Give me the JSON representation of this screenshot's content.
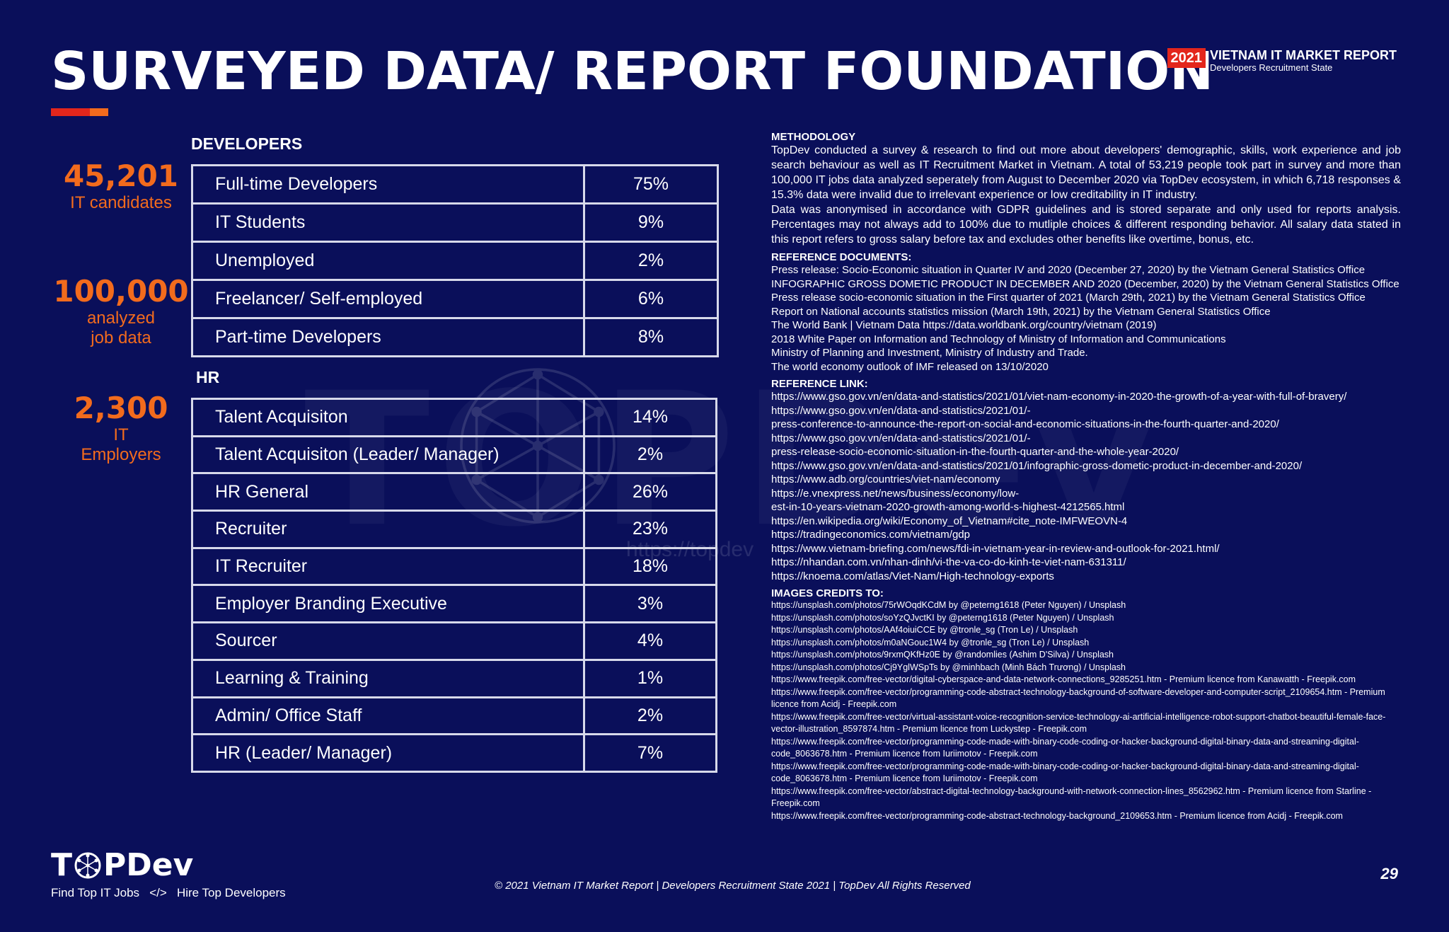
{
  "title": "SURVEYED DATA/ REPORT FOUNDATION",
  "brand": {
    "year": "2021",
    "title": "VIETNAM IT MARKET REPORT",
    "subtitle": "Developers Recruitment State"
  },
  "colors": {
    "background": "#0a0f5a",
    "accent_orange": "#f26b1d",
    "accent_red": "#e3261c",
    "table_border": "#d7d9ea"
  },
  "stats": [
    {
      "number": "45,201",
      "label1": "IT candidates",
      "label2": ""
    },
    {
      "number": "100,000",
      "label1": "analyzed",
      "label2": "job data"
    },
    {
      "number": "2,300",
      "label1": "IT",
      "label2": "Employers"
    }
  ],
  "developers": {
    "heading": "DEVELOPERS",
    "rows": [
      {
        "label": "Full-time Developers",
        "value": "75%"
      },
      {
        "label": "IT Students",
        "value": "9%"
      },
      {
        "label": "Unemployed",
        "value": "2%"
      },
      {
        "label": "Freelancer/ Self-employed",
        "value": "6%"
      },
      {
        "label": "Part-time Developers",
        "value": "8%"
      }
    ]
  },
  "hr": {
    "heading": "HR",
    "rows": [
      {
        "label": "Talent Acquisiton",
        "value": "14%"
      },
      {
        "label": "Talent Acquisiton (Leader/ Manager)",
        "value": "2%"
      },
      {
        "label": "HR General",
        "value": "26%"
      },
      {
        "label": "Recruiter",
        "value": "23%"
      },
      {
        "label": "IT Recruiter",
        "value": "18%"
      },
      {
        "label": "Employer Branding Executive",
        "value": "3%"
      },
      {
        "label": "Sourcer",
        "value": "4%"
      },
      {
        "label": "Learning & Training",
        "value": "1%"
      },
      {
        "label": "Admin/ Office Staff",
        "value": "2%"
      },
      {
        "label": "HR (Leader/ Manager)",
        "value": "7%"
      }
    ]
  },
  "methodology": {
    "heading": "METHODOLOGY",
    "p1": "TopDev conducted a survey & research to find out more about developers' demographic, skills, work experience and job search behaviour as well as IT Recruitment Market in Vietnam. A total of 53,219 people took part in survey and more than 100,000 IT jobs data analyzed seperately from August to December 2020 via TopDev ecosystem, in which 6,718 responses & 15.3% data were invalid due to irrelevant experience or low creditability in IT industry.",
    "p2": "Data was anonymised in accordance with GDPR guidelines and is stored separate and only used for reports analysis. Percentages may not always add to 100% due to mutliple choices & different responding behavior. All salary data stated in this report refers to gross salary before tax and excludes other benefits like overtime, bonus, etc."
  },
  "reference_documents": {
    "heading": "REFERENCE DOCUMENTS:",
    "items": [
      "Press release: Socio-Economic situation in Quarter IV and 2020 (December 27, 2020) by the Vietnam General Statistics Office",
      "INFOGRAPHIC GROSS DOMETIC PRODUCT IN DECEMBER AND 2020 (December, 2020) by the Vietnam General Statistics Office",
      "Press release socio-economic situation in the First quarter of 2021 (March 29th, 2021) by the Vietnam General Statistics Office",
      "Report on National accounts statistics mission  (March 19th, 2021) by the Vietnam General Statistics Office",
      "The World Bank | Vietnam Data https://data.worldbank.org/country/vietnam (2019)",
      "2018 White Paper on Information and Technology of Ministry of Information and Communications",
      "Ministry of Planning and Investment, Ministry of Industry and Trade.",
      "The world economy outlook of IMF released on 13/10/2020"
    ]
  },
  "reference_link": {
    "heading": "REFERENCE LINK:",
    "items": [
      "https://www.gso.gov.vn/en/data-and-statistics/2021/01/viet-nam-economy-in-2020-the-growth-of-a-year-with-full-of-bravery/",
      "https://www.gso.gov.vn/en/data-and-statistics/2021/01/-",
      "press-conference-to-announce-the-report-on-social-and-economic-situations-in-the-fourth-quarter-and-2020/",
      "https://www.gso.gov.vn/en/data-and-statistics/2021/01/-",
      "press-release-socio-economic-situation-in-the-fourth-quarter-and-the-whole-year-2020/",
      "https://www.gso.gov.vn/en/data-and-statistics/2021/01/infographic-gross-dometic-product-in-december-and-2020/",
      "https://www.adb.org/countries/viet-nam/economy",
      "https://e.vnexpress.net/news/business/economy/low-",
      "est-in-10-years-vietnam-2020-growth-among-world-s-highest-4212565.html",
      "https://en.wikipedia.org/wiki/Economy_of_Vietnam#cite_note-IMFWEOVN-4",
      "https://tradingeconomics.com/vietnam/gdp",
      "https://www.vietnam-briefing.com/news/fdi-in-vietnam-year-in-review-and-outlook-for-2021.html/",
      "https://nhandan.com.vn/nhan-dinh/vi-the-va-co-do-kinh-te-viet-nam-631311/",
      "https://knoema.com/atlas/Viet-Nam/High-technology-exports"
    ]
  },
  "images_credits": {
    "heading": "IMAGES CREDITS TO:",
    "items": [
      "https://unsplash.com/photos/75rWOqdKCdM by @peterng1618 (Peter Nguyen) / Unsplash",
      "https://unsplash.com/photos/soYzQJvctKI by @peterng1618 (Peter Nguyen) / Unsplash",
      "https://unsplash.com/photos/AAf4oiuiCCE by @tronle_sg (Tron Le) / Unsplash",
      "https://unsplash.com/photos/m0aNGouc1W4 by @tronle_sg (Tron Le) / Unsplash",
      "https://unsplash.com/photos/9rxmQKfHz0E by @randomlies (Ashim D'Silva) / Unsplash",
      "https://unsplash.com/photos/Cj9YglWSpTs by @minhbach (Minh Bách Trương) / Unsplash",
      "https://www.freepik.com/free-vector/digital-cyberspace-and-data-network-connections_9285251.htm - Premium licence from Kanawatth - Freepik.com",
      "https://www.freepik.com/free-vector/programming-code-abstract-technology-background-of-software-developer-and-computer-script_2109654.htm - Premium licence from Acidj - Freepik.com",
      "https://www.freepik.com/free-vector/virtual-assistant-voice-recognition-service-technology-ai-artificial-intelligence-robot-support-chatbot-beautiful-female-face-vector-illustration_8597874.htm - Premium licence from Luckystep - Freepik.com",
      "https://www.freepik.com/free-vector/programming-code-made-with-binary-code-coding-or-hacker-background-digital-binary-data-and-streaming-digital-code_8063678.htm - Premium licence from Iuriimotov - Freepik.com",
      "https://www.freepik.com/free-vector/programming-code-made-with-binary-code-coding-or-hacker-background-digital-binary-data-and-streaming-digital-code_8063678.htm - Premium licence from Iuriimotov - Freepik.com",
      "https://www.freepik.com/free-vector/abstract-digital-technology-background-with-network-connection-lines_8562962.htm - Premium licence from Starline - Freepik.com",
      "https://www.freepik.com/free-vector/programming-code-abstract-technology-background_2109653.htm - Premium licence from Acidj - Freepik.com"
    ]
  },
  "logo": {
    "part1": "T",
    "part2": "PDev",
    "icon": "network-globe-icon"
  },
  "tagline": "Find Top IT Jobs   </>   Hire Top Developers",
  "footer": "© 2021 Vietnam IT Market Report | Developers Recruitment State 2021 | TopDev All Rights Reserved",
  "page_number": "29",
  "watermark": {
    "text": "TOPDev",
    "url": "https://topdev"
  }
}
